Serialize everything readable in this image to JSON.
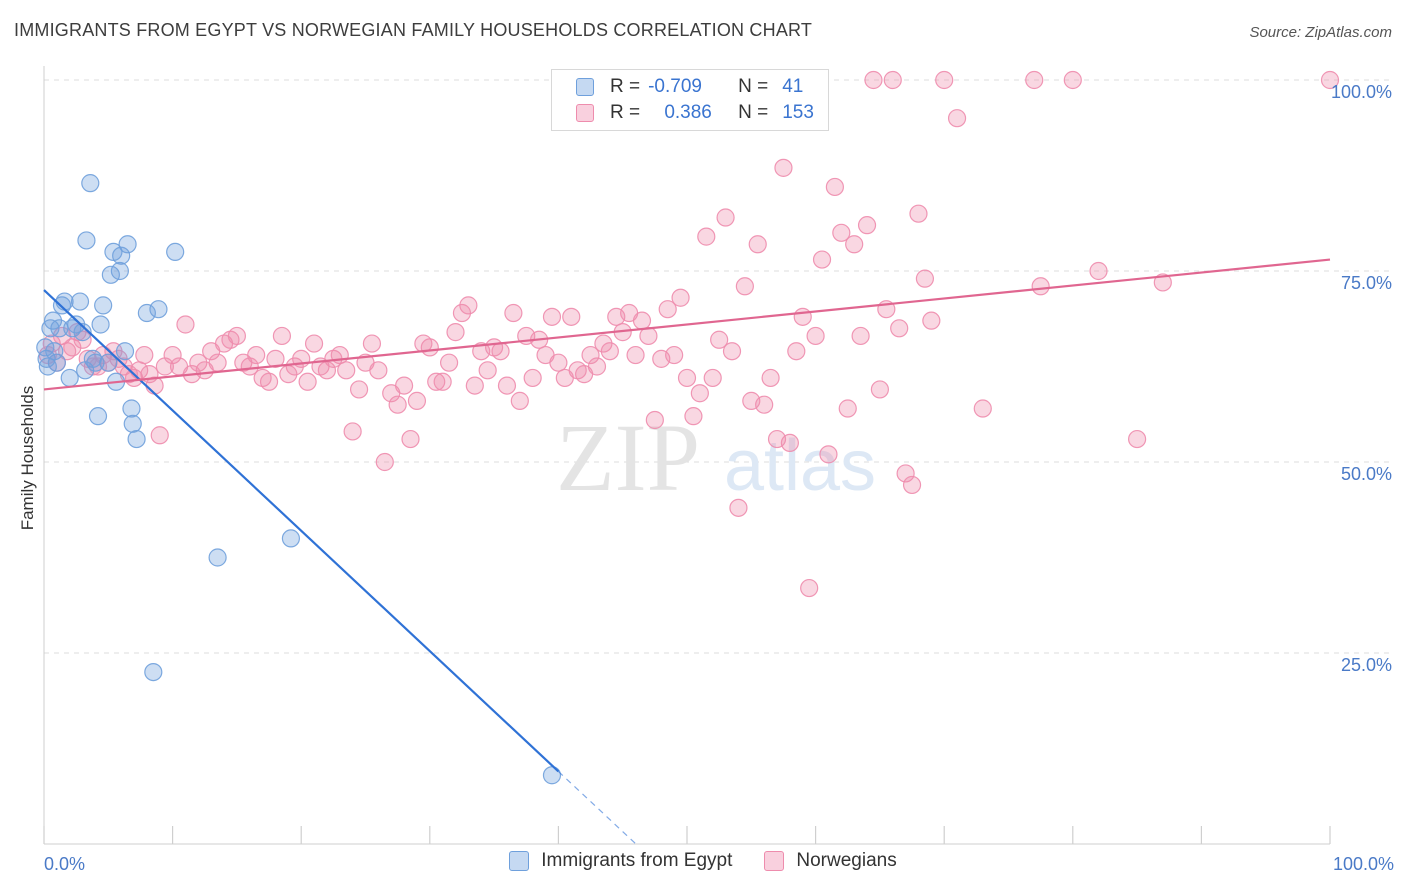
{
  "title": "IMMIGRANTS FROM EGYPT VS NORWEGIAN FAMILY HOUSEHOLDS CORRELATION CHART",
  "source": "Source: ZipAtlas.com",
  "watermark": {
    "zip": "ZIP",
    "atlas": "atlas"
  },
  "colors": {
    "blue": "#6fa0dc",
    "blue_line": "#2f72d6",
    "pink": "#ee8cad",
    "pink_line": "#e06690",
    "tick": "#4a7ac7"
  },
  "legend": {
    "r_label": "R =",
    "n_label": "N =",
    "series": [
      {
        "r": "-0.709",
        "n": "41"
      },
      {
        "r": "0.386",
        "n": "153"
      }
    ]
  },
  "chart_data": {
    "type": "scatter",
    "title": "IMMIGRANTS FROM EGYPT VS NORWEGIAN FAMILY HOUSEHOLDS CORRELATION CHART",
    "xlabel": "",
    "ylabel": "Family Households",
    "xlim": [
      0,
      100
    ],
    "ylim": [
      0,
      102
    ],
    "x_tick_labels": [
      "0.0%",
      "100.0%"
    ],
    "y_ticks": [
      25,
      50,
      75,
      100
    ],
    "y_tick_labels": [
      "25.0%",
      "50.0%",
      "75.0%",
      "100.0%"
    ],
    "grid": true,
    "legend_position": "top-center",
    "series": [
      {
        "name": "Immigrants from Egypt",
        "color": "#6fa0dc",
        "r": -0.709,
        "n": 41,
        "trend": {
          "x0": 0,
          "y0": 72.5,
          "x1": 40,
          "y1": 9.5,
          "dash_to_x": 46
        },
        "points": [
          [
            0.2,
            63.5
          ],
          [
            0.3,
            62.5
          ],
          [
            0.5,
            67.5
          ],
          [
            0.7,
            68.5
          ],
          [
            0.8,
            64.5
          ],
          [
            1.0,
            63.0
          ],
          [
            1.2,
            67.5
          ],
          [
            1.4,
            70.5
          ],
          [
            1.6,
            71.0
          ],
          [
            2.0,
            61.0
          ],
          [
            2.2,
            67.5
          ],
          [
            2.5,
            68.0
          ],
          [
            2.8,
            71.0
          ],
          [
            3.0,
            67.0
          ],
          [
            3.2,
            62.0
          ],
          [
            3.3,
            79.0
          ],
          [
            3.6,
            86.5
          ],
          [
            3.8,
            63.5
          ],
          [
            4.0,
            63.0
          ],
          [
            4.2,
            56.0
          ],
          [
            4.4,
            68.0
          ],
          [
            4.6,
            70.5
          ],
          [
            5.0,
            63.0
          ],
          [
            5.2,
            74.5
          ],
          [
            5.4,
            77.5
          ],
          [
            5.6,
            60.5
          ],
          [
            5.9,
            75.0
          ],
          [
            6.0,
            77.0
          ],
          [
            6.3,
            64.5
          ],
          [
            6.5,
            78.5
          ],
          [
            6.8,
            57.0
          ],
          [
            6.9,
            55.0
          ],
          [
            7.2,
            53.0
          ],
          [
            8.0,
            69.5
          ],
          [
            8.5,
            22.5
          ],
          [
            8.9,
            70.0
          ],
          [
            10.2,
            77.5
          ],
          [
            13.5,
            37.5
          ],
          [
            19.2,
            40.0
          ],
          [
            39.5,
            9.0
          ],
          [
            0.1,
            65.0
          ]
        ]
      },
      {
        "name": "Norwegians",
        "color": "#ee8cad",
        "r": 0.386,
        "n": 153,
        "trend": {
          "x0": 0,
          "y0": 59.5,
          "x1": 100,
          "y1": 76.5
        },
        "points": [
          [
            0.3,
            64.0
          ],
          [
            0.6,
            65.5
          ],
          [
            1.0,
            63.0
          ],
          [
            1.4,
            66.5
          ],
          [
            1.8,
            64.5
          ],
          [
            2.2,
            65.0
          ],
          [
            2.6,
            67.0
          ],
          [
            3.0,
            66.0
          ],
          [
            3.4,
            63.5
          ],
          [
            3.8,
            62.5
          ],
          [
            4.2,
            62.5
          ],
          [
            4.6,
            64.0
          ],
          [
            5.0,
            63.0
          ],
          [
            5.4,
            64.5
          ],
          [
            5.8,
            63.5
          ],
          [
            6.2,
            62.5
          ],
          [
            6.6,
            61.5
          ],
          [
            7.0,
            61.0
          ],
          [
            7.4,
            62.0
          ],
          [
            7.8,
            64.0
          ],
          [
            8.2,
            61.5
          ],
          [
            8.6,
            60.0
          ],
          [
            9.0,
            53.5
          ],
          [
            9.4,
            62.5
          ],
          [
            10.0,
            64.0
          ],
          [
            10.5,
            62.5
          ],
          [
            11.0,
            68.0
          ],
          [
            11.5,
            61.5
          ],
          [
            12.0,
            63.0
          ],
          [
            12.5,
            62.0
          ],
          [
            13.0,
            64.5
          ],
          [
            13.5,
            63.0
          ],
          [
            14.0,
            65.5
          ],
          [
            14.5,
            66.0
          ],
          [
            15.0,
            66.5
          ],
          [
            15.5,
            63.0
          ],
          [
            16.0,
            62.5
          ],
          [
            16.5,
            64.0
          ],
          [
            17.0,
            61.0
          ],
          [
            17.5,
            60.5
          ],
          [
            18.0,
            63.5
          ],
          [
            18.5,
            66.5
          ],
          [
            19.0,
            61.5
          ],
          [
            19.5,
            62.5
          ],
          [
            20.0,
            63.5
          ],
          [
            20.5,
            60.5
          ],
          [
            21.0,
            65.5
          ],
          [
            21.5,
            62.5
          ],
          [
            22.0,
            62.0
          ],
          [
            22.5,
            63.5
          ],
          [
            23.0,
            64.0
          ],
          [
            23.5,
            62.0
          ],
          [
            24.0,
            54.0
          ],
          [
            24.5,
            59.5
          ],
          [
            25.0,
            63.0
          ],
          [
            25.5,
            65.5
          ],
          [
            26.0,
            62.0
          ],
          [
            26.5,
            50.0
          ],
          [
            27.0,
            59.0
          ],
          [
            27.5,
            57.5
          ],
          [
            28.0,
            60.0
          ],
          [
            28.5,
            53.0
          ],
          [
            29.0,
            58.0
          ],
          [
            29.5,
            65.5
          ],
          [
            30.0,
            65.0
          ],
          [
            30.5,
            60.5
          ],
          [
            31.0,
            60.5
          ],
          [
            31.5,
            63.0
          ],
          [
            32.0,
            67.0
          ],
          [
            32.5,
            69.5
          ],
          [
            33.0,
            70.5
          ],
          [
            33.5,
            60.0
          ],
          [
            34.0,
            64.5
          ],
          [
            34.5,
            62.0
          ],
          [
            35.0,
            65.0
          ],
          [
            35.5,
            64.5
          ],
          [
            36.0,
            60.0
          ],
          [
            36.5,
            69.5
          ],
          [
            37.0,
            58.0
          ],
          [
            37.5,
            66.5
          ],
          [
            38.0,
            61.0
          ],
          [
            38.5,
            66.0
          ],
          [
            39.0,
            64.0
          ],
          [
            39.5,
            69.0
          ],
          [
            40.0,
            63.0
          ],
          [
            40.5,
            61.0
          ],
          [
            41.0,
            69.0
          ],
          [
            41.5,
            62.0
          ],
          [
            42.0,
            61.5
          ],
          [
            42.5,
            64.0
          ],
          [
            43.0,
            62.5
          ],
          [
            43.5,
            65.5
          ],
          [
            44.0,
            64.5
          ],
          [
            44.5,
            69.0
          ],
          [
            45.0,
            67.0
          ],
          [
            45.5,
            69.5
          ],
          [
            46.0,
            64.0
          ],
          [
            46.5,
            68.5
          ],
          [
            47.0,
            66.5
          ],
          [
            47.5,
            55.5
          ],
          [
            48.0,
            63.5
          ],
          [
            48.5,
            70.0
          ],
          [
            49.0,
            64.0
          ],
          [
            49.5,
            71.5
          ],
          [
            50.0,
            61.0
          ],
          [
            50.5,
            56.0
          ],
          [
            51.0,
            59.0
          ],
          [
            51.5,
            79.5
          ],
          [
            52.0,
            61.0
          ],
          [
            52.5,
            66.0
          ],
          [
            53.0,
            82.0
          ],
          [
            53.5,
            64.5
          ],
          [
            54.0,
            44.0
          ],
          [
            54.5,
            73.0
          ],
          [
            55.0,
            58.0
          ],
          [
            55.5,
            78.5
          ],
          [
            56.0,
            57.5
          ],
          [
            56.5,
            61.0
          ],
          [
            57.0,
            53.0
          ],
          [
            57.5,
            88.5
          ],
          [
            58.0,
            52.5
          ],
          [
            58.5,
            64.5
          ],
          [
            59.0,
            69.0
          ],
          [
            59.5,
            33.5
          ],
          [
            60.0,
            66.5
          ],
          [
            60.5,
            76.5
          ],
          [
            61.0,
            51.0
          ],
          [
            61.5,
            86.0
          ],
          [
            62.0,
            80.0
          ],
          [
            62.5,
            57.0
          ],
          [
            63.0,
            78.5
          ],
          [
            63.5,
            66.5
          ],
          [
            64.0,
            81.0
          ],
          [
            64.5,
            100.0
          ],
          [
            65.0,
            59.5
          ],
          [
            65.5,
            70.0
          ],
          [
            66.0,
            100.0
          ],
          [
            66.5,
            67.5
          ],
          [
            67.0,
            48.5
          ],
          [
            67.5,
            47.0
          ],
          [
            68.0,
            82.5
          ],
          [
            68.5,
            74.0
          ],
          [
            69.0,
            68.5
          ],
          [
            70.0,
            100.0
          ],
          [
            71.0,
            95.0
          ],
          [
            73.0,
            57.0
          ],
          [
            77.0,
            100.0
          ],
          [
            77.5,
            73.0
          ],
          [
            80.0,
            100.0
          ],
          [
            82.0,
            75.0
          ],
          [
            85.0,
            53.0
          ],
          [
            87.0,
            73.5
          ],
          [
            100.0,
            100.0
          ]
        ]
      }
    ]
  },
  "bottom_legend": [
    "Immigrants from Egypt",
    "Norwegians"
  ]
}
